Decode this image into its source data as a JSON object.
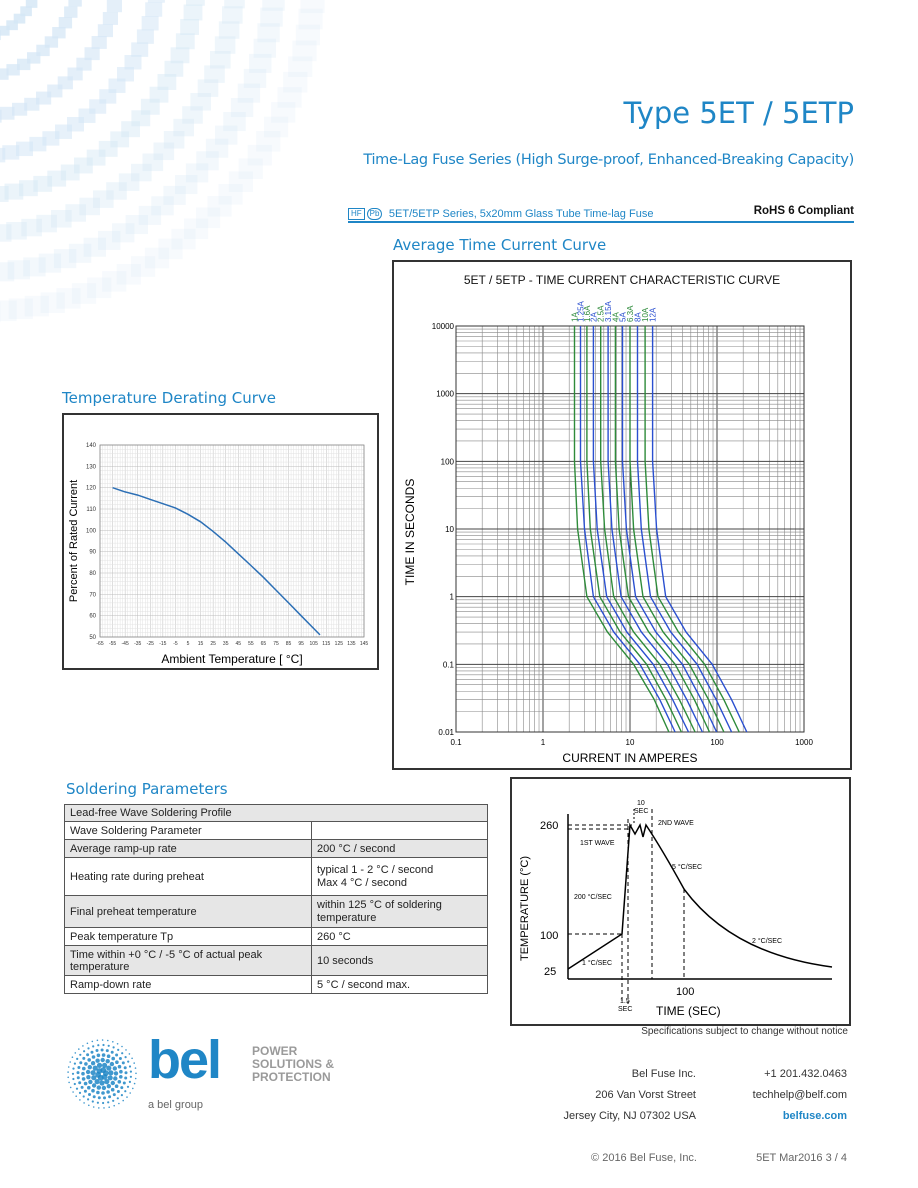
{
  "header": {
    "title": "Type 5ET / 5ETP",
    "subtitle": "Time-Lag Fuse Series (High Surge-proof, Enhanced-Breaking Capacity)",
    "badge_hf": "HF",
    "badge_pb": "Pb",
    "product_line": "5ET/5ETP Series, 5x20mm Glass Tube Time-lag Fuse",
    "rohs": "RoHS 6 Compliant"
  },
  "sections": {
    "derating_title": "Temperature Derating Curve",
    "tcc_title": "Average Time Current Curve",
    "soldering_title": "Soldering Parameters"
  },
  "derating_chart": {
    "chart_data": {
      "type": "line",
      "title": "",
      "xlabel": "Ambient Temperature [ °C]",
      "ylabel": "Percent of Rated Current",
      "xlim": [
        -65,
        145
      ],
      "ylim": [
        50,
        140
      ],
      "x_ticks": [
        "-65",
        "-55",
        "-45",
        "-35",
        "-25",
        "-15",
        "-5",
        "5",
        "15",
        "25",
        "35",
        "45",
        "55",
        "65",
        "75",
        "85",
        "95",
        "105",
        "115",
        "125",
        "135",
        "145"
      ],
      "y_ticks": [
        "50",
        "60",
        "70",
        "80",
        "90",
        "100",
        "110",
        "120",
        "130",
        "140"
      ],
      "grid": true,
      "series": [
        {
          "x": [
            -55,
            -45,
            -35,
            -25,
            -15,
            -5,
            5,
            15,
            25,
            35,
            45,
            55,
            65,
            75,
            85,
            95,
            105,
            110
          ],
          "y": [
            120,
            118,
            116.5,
            114.5,
            112.5,
            110.5,
            107.5,
            104,
            99.5,
            94.5,
            89,
            83.5,
            78,
            72,
            66,
            60,
            54,
            51
          ]
        }
      ],
      "color": "#2c6fb5"
    }
  },
  "tcc_chart": {
    "chart_data": {
      "type": "line",
      "title": "5ET / 5ETP - TIME CURRENT CHARACTERISTIC CURVE",
      "xlabel": "CURRENT IN AMPERES",
      "ylabel": "TIME IN SECONDS",
      "x_scale": "log",
      "y_scale": "log",
      "xlim": [
        0.1,
        1000
      ],
      "ylim": [
        0.01,
        10000
      ],
      "x_tick_labels": [
        "0.1",
        "1",
        "10",
        "100",
        "1000"
      ],
      "y_tick_labels": [
        "0.01",
        "0.1",
        "1",
        "10",
        "100",
        "1000",
        "10000"
      ],
      "grid": true,
      "series": [
        {
          "name": "1A",
          "color": "#2e8b3a",
          "x": [
            2.3,
            2.3,
            2.5,
            3.2,
            5.5,
            11,
            19,
            28
          ],
          "y": [
            10000,
            100,
            10,
            1,
            0.3,
            0.1,
            0.03,
            0.01
          ]
        },
        {
          "name": "1.25A",
          "color": "#2a4fd0",
          "x": [
            2.7,
            2.7,
            3.0,
            3.8,
            6.5,
            13,
            22,
            33
          ],
          "y": [
            10000,
            100,
            10,
            1,
            0.3,
            0.1,
            0.03,
            0.01
          ]
        },
        {
          "name": "1.6A",
          "color": "#2e8b3a",
          "x": [
            3.2,
            3.2,
            3.5,
            4.5,
            7.7,
            15.5,
            26,
            39
          ],
          "y": [
            10000,
            100,
            10,
            1,
            0.3,
            0.1,
            0.03,
            0.01
          ]
        },
        {
          "name": "2A",
          "color": "#2a4fd0",
          "x": [
            3.8,
            3.8,
            4.2,
            5.4,
            9.2,
            18.5,
            31,
            47
          ],
          "y": [
            10000,
            100,
            10,
            1,
            0.3,
            0.1,
            0.03,
            0.01
          ]
        },
        {
          "name": "2.5A",
          "color": "#2e8b3a",
          "x": [
            4.6,
            4.6,
            5.1,
            6.5,
            11,
            22,
            37,
            56
          ],
          "y": [
            10000,
            100,
            10,
            1,
            0.3,
            0.1,
            0.03,
            0.01
          ]
        },
        {
          "name": "3.15A",
          "color": "#2a4fd0",
          "x": [
            5.6,
            5.6,
            6.2,
            7.9,
            13.5,
            27,
            45,
            68
          ],
          "y": [
            10000,
            100,
            10,
            1,
            0.3,
            0.1,
            0.03,
            0.01
          ]
        },
        {
          "name": "4A",
          "color": "#2e8b3a",
          "x": [
            6.8,
            6.8,
            7.5,
            9.6,
            16.4,
            33,
            55,
            82
          ],
          "y": [
            10000,
            100,
            10,
            1,
            0.3,
            0.1,
            0.03,
            0.01
          ]
        },
        {
          "name": "5A",
          "color": "#2a4fd0",
          "x": [
            8.2,
            8.2,
            9.1,
            11.6,
            19.8,
            40,
            66,
            99
          ],
          "y": [
            10000,
            100,
            10,
            1,
            0.3,
            0.1,
            0.03,
            0.01
          ]
        },
        {
          "name": "6.3A",
          "color": "#2e8b3a",
          "x": [
            10,
            10,
            11,
            14.1,
            24,
            48,
            80,
            120
          ],
          "y": [
            10000,
            100,
            10,
            1,
            0.3,
            0.1,
            0.03,
            0.01
          ]
        },
        {
          "name": "8A",
          "color": "#2a4fd0",
          "x": [
            12.2,
            12.2,
            13.5,
            17.2,
            29.4,
            59,
            98,
            147
          ],
          "y": [
            10000,
            100,
            10,
            1,
            0.3,
            0.1,
            0.03,
            0.01
          ]
        },
        {
          "name": "10A",
          "color": "#2e8b3a",
          "x": [
            14.9,
            14.9,
            16.5,
            21,
            36,
            72,
            120,
            180
          ],
          "y": [
            10000,
            100,
            10,
            1,
            0.3,
            0.1,
            0.03,
            0.01
          ]
        },
        {
          "name": "12A",
          "color": "#2a4fd0",
          "x": [
            18.2,
            18.2,
            20.2,
            25.7,
            44,
            88,
            147,
            220
          ],
          "y": [
            10000,
            100,
            10,
            1,
            0.3,
            0.1,
            0.03,
            0.01
          ]
        }
      ]
    }
  },
  "soldering_table": {
    "header": "Lead-free Wave Soldering Profile",
    "rows": [
      {
        "param": "Wave Soldering Parameter",
        "value": ""
      },
      {
        "param": "Average ramp-up rate",
        "value": "200 °C / second"
      },
      {
        "param": "Heating rate during preheat",
        "value": "typical 1 - 2 °C / second\nMax 4 °C / second"
      },
      {
        "param": "Final preheat temperature",
        "value": "within 125 °C of soldering temperature"
      },
      {
        "param": "Peak temperature Tp",
        "value": "260 °C"
      },
      {
        "param": "Time within +0 °C / -5 °C of actual peak temperature",
        "value": "10 seconds"
      },
      {
        "param": "Ramp-down rate",
        "value": "5 °C / second max."
      }
    ]
  },
  "profile_chart": {
    "ylabel": "TEMPERATURE (°C)",
    "xlabel": "TIME (SEC)",
    "y_tick_labels": [
      "25",
      "100",
      "260"
    ],
    "x_tick_labels": [
      "100"
    ],
    "annotations": {
      "ten_sec": "10",
      "ten_sec_unit": "SEC",
      "first_wave": "1ST WAVE",
      "second_wave": "2ND WAVE",
      "rate_200": "200 °C/SEC",
      "rate_1": "1 °C/SEC",
      "rate_5": "5 °C/SEC",
      "rate_2": "2 °C/SEC",
      "one_five": "1.5",
      "one_five_unit": "SEC"
    }
  },
  "notice": "Specifications subject to change without notice",
  "footer": {
    "logo_word": "bel",
    "tagline_1": "POWER",
    "tagline_2": "SOLUTIONS &",
    "tagline_3": "PROTECTION",
    "group": "a bel group",
    "company": "Bel Fuse Inc.",
    "street": "206 Van Vorst Street",
    "city": "Jersey City, NJ 07302 USA",
    "phone": "+1 201.432.0463",
    "email": "techhelp@belf.com",
    "web": "belfuse.com",
    "copyright": "© 2016 Bel Fuse, Inc.",
    "docref": "5ET Mar2016 3 / 4"
  },
  "colors": {
    "brand": "#1f86c6",
    "decor": "#d4e6f5",
    "green_series": "#2e8b3a",
    "blue_series": "#2a4fd0"
  }
}
